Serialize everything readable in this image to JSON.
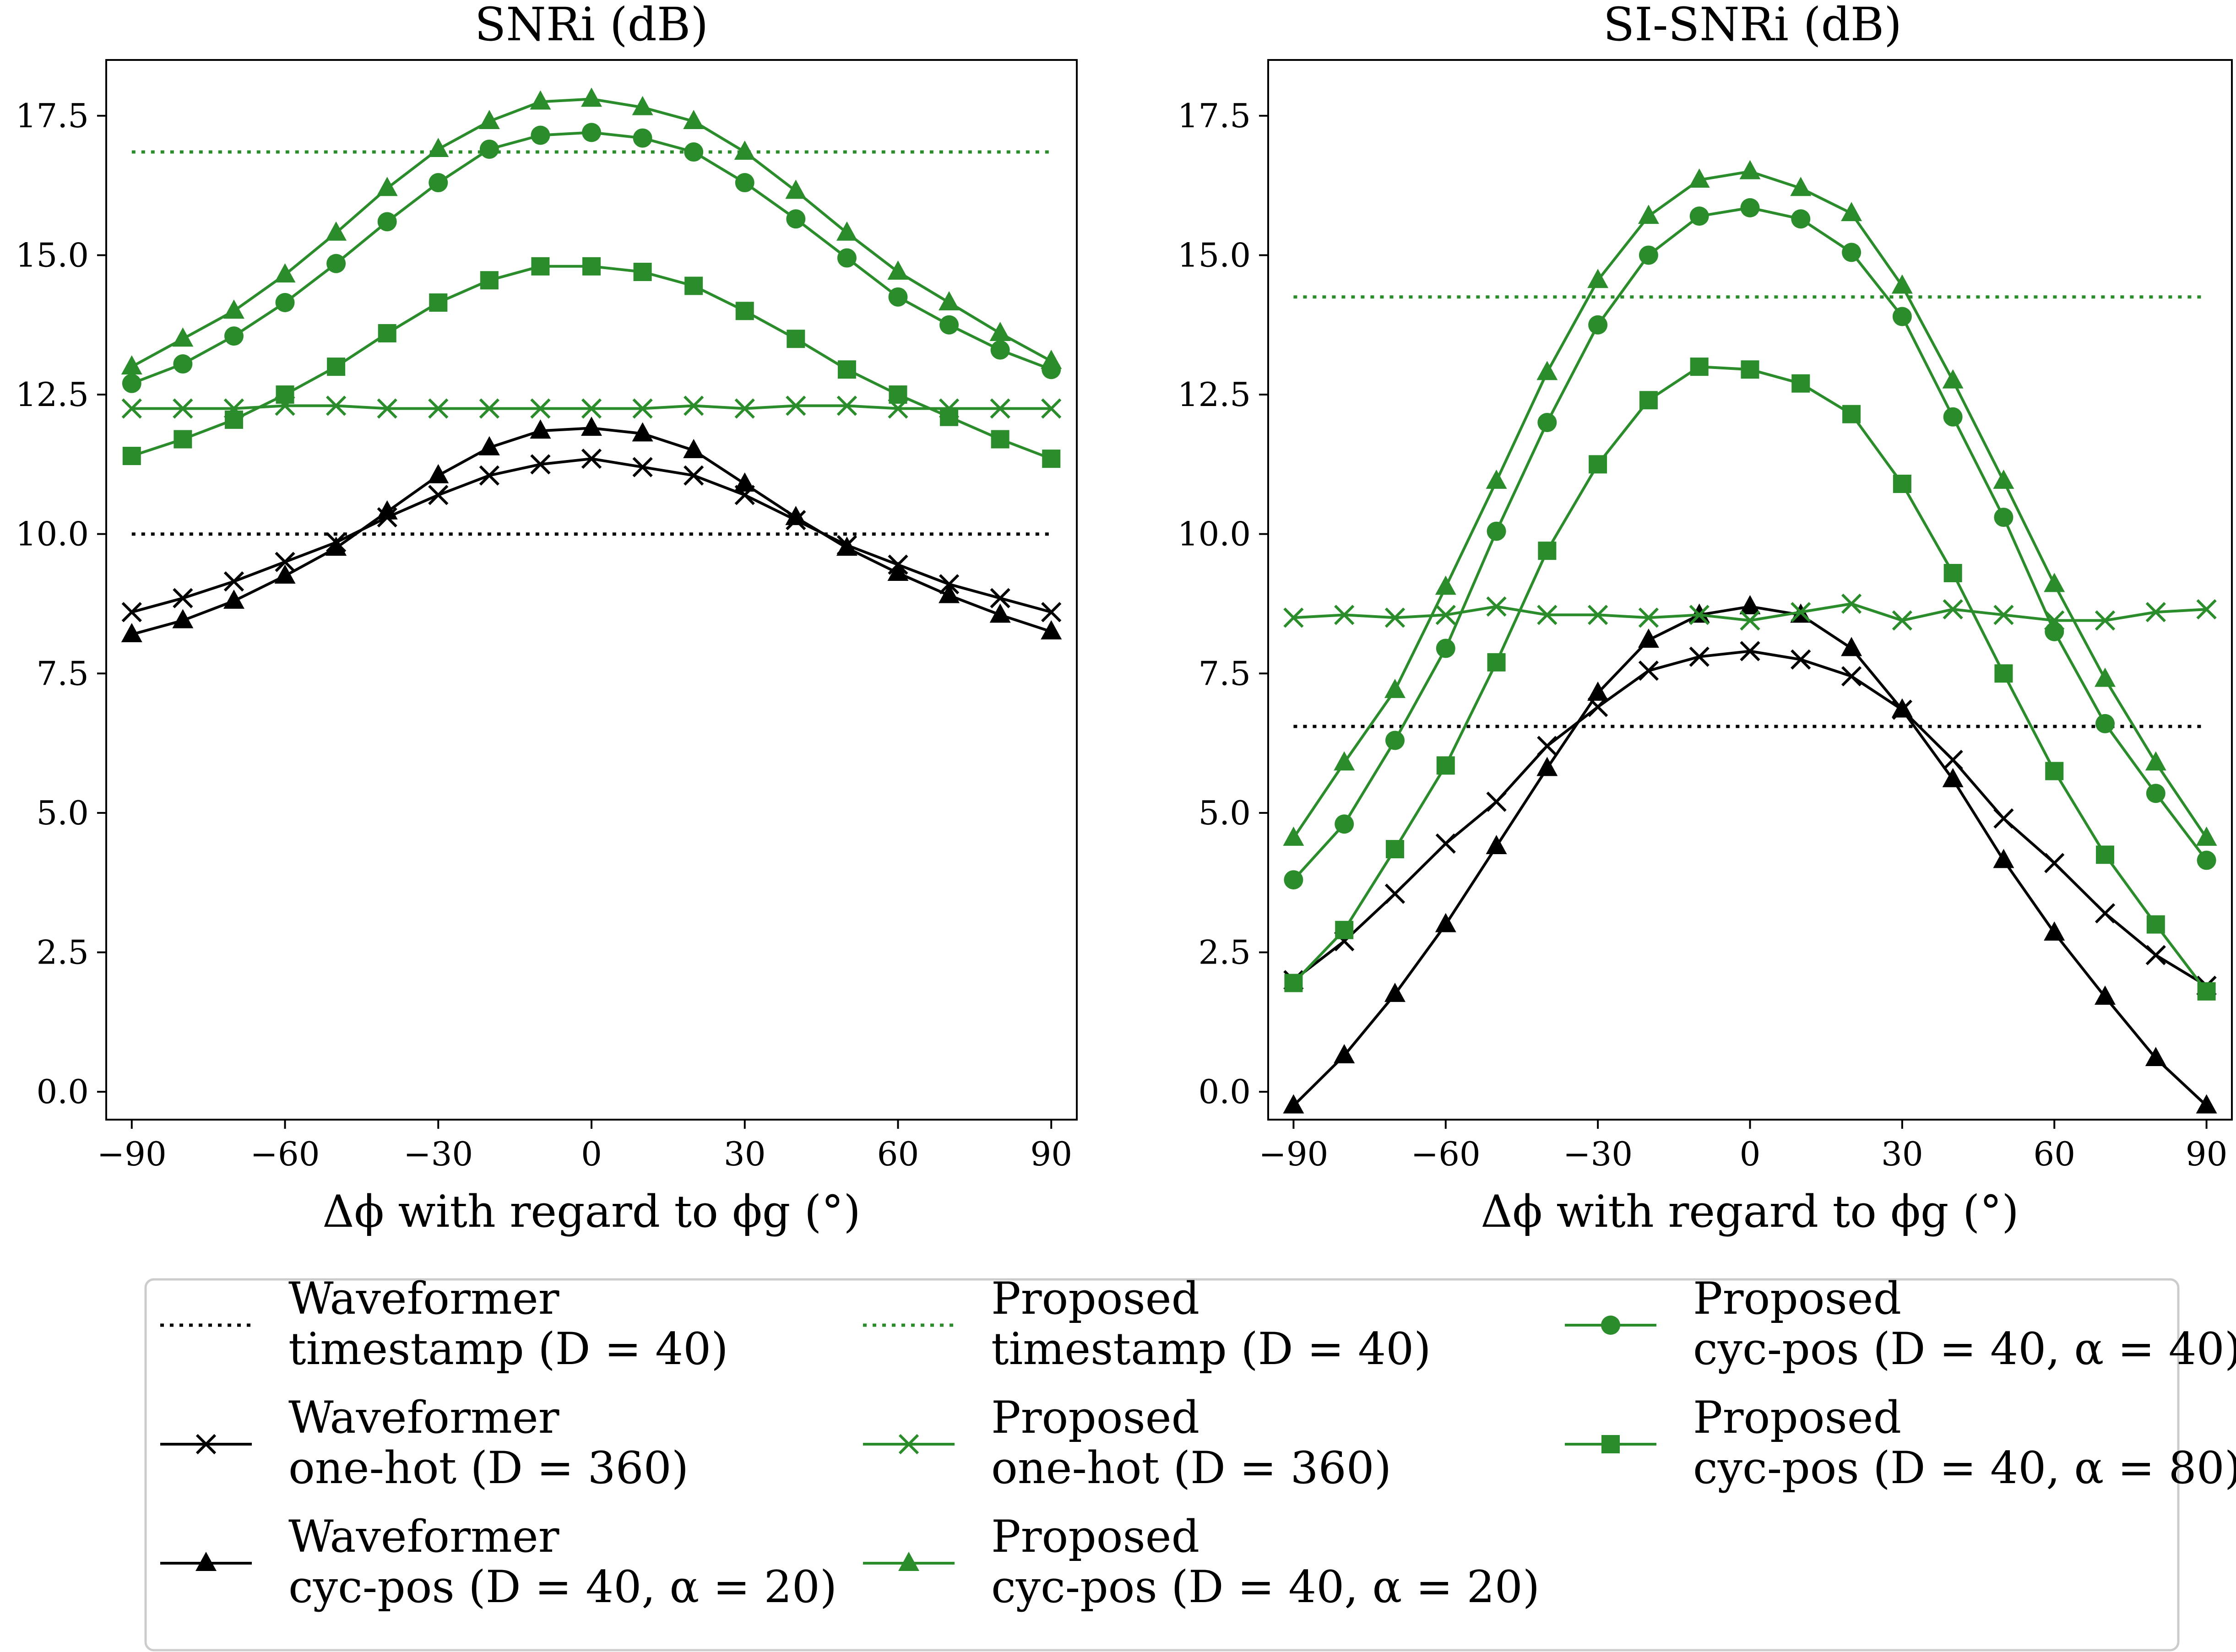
{
  "colors": {
    "black": "#000000",
    "green": "#2a8c2a",
    "legend_border": "#cccccc"
  },
  "series_styles": [
    {
      "key": "wf_ts",
      "color": "#000000",
      "dash": "dotted",
      "marker": "none"
    },
    {
      "key": "wf_oh",
      "color": "#000000",
      "dash": "solid",
      "marker": "x"
    },
    {
      "key": "wf_cp",
      "color": "#000000",
      "dash": "solid",
      "marker": "triangle"
    },
    {
      "key": "pr_ts",
      "color": "#2a8c2a",
      "dash": "dotted",
      "marker": "none"
    },
    {
      "key": "pr_oh",
      "color": "#2a8c2a",
      "dash": "solid",
      "marker": "x"
    },
    {
      "key": "pr_cp20",
      "color": "#2a8c2a",
      "dash": "solid",
      "marker": "triangle"
    },
    {
      "key": "pr_cp40",
      "color": "#2a8c2a",
      "dash": "solid",
      "marker": "circle"
    },
    {
      "key": "pr_cp80",
      "color": "#2a8c2a",
      "dash": "solid",
      "marker": "square"
    }
  ],
  "legend": {
    "entries": [
      {
        "key": "wf_ts",
        "line1": "Waveformer",
        "line2": "timestamp",
        "params": "(D = 40)"
      },
      {
        "key": "wf_oh",
        "line1": "Waveformer",
        "line2": "one-hot",
        "params": "(D = 360)"
      },
      {
        "key": "wf_cp",
        "line1": "Waveformer",
        "line2": "cyc-pos",
        "params": "(D = 40, α = 20)"
      },
      {
        "key": "pr_ts",
        "line1": "Proposed",
        "line2": "timestamp",
        "params": "(D = 40)"
      },
      {
        "key": "pr_oh",
        "line1": "Proposed",
        "line2": "one-hot",
        "params": "(D = 360)"
      },
      {
        "key": "pr_cp20",
        "line1": "Proposed",
        "line2": "cyc-pos",
        "params": "(D = 40, α = 20)"
      },
      {
        "key": "pr_cp40",
        "line1": "Proposed",
        "line2": "cyc-pos",
        "params": "(D = 40, α = 40)"
      },
      {
        "key": "pr_cp80",
        "line1": "Proposed",
        "line2": "cyc-pos",
        "params": "(D = 40, α = 80)"
      }
    ]
  },
  "chart_data": [
    {
      "type": "line",
      "title": "SNRi (dB)",
      "xlabel": "Δϕ with regard to ϕg (°)",
      "ylabel": "",
      "xlim": [
        -95,
        95
      ],
      "ylim": [
        -0.5,
        18.5
      ],
      "xticks": [
        -90,
        -60,
        -30,
        0,
        30,
        60,
        90
      ],
      "xtick_labels": [
        "−90",
        "−60",
        "−30",
        "0",
        "30",
        "60",
        "90"
      ],
      "yticks": [
        0.0,
        2.5,
        5.0,
        7.5,
        10.0,
        12.5,
        15.0,
        17.5
      ],
      "ytick_labels": [
        "0.0",
        "2.5",
        "5.0",
        "7.5",
        "10.0",
        "12.5",
        "15.0",
        "17.5"
      ],
      "x": [
        -90,
        -80,
        -70,
        -60,
        -50,
        -40,
        -30,
        -20,
        -10,
        0,
        10,
        20,
        30,
        40,
        50,
        60,
        70,
        80,
        90
      ],
      "series": [
        {
          "key": "wf_ts",
          "name": "Waveformer timestamp (D=40)",
          "values": [
            10.0,
            10.0,
            10.0,
            10.0,
            10.0,
            10.0,
            10.0,
            10.0,
            10.0,
            10.0,
            10.0,
            10.0,
            10.0,
            10.0,
            10.0,
            10.0,
            10.0,
            10.0,
            10.0
          ]
        },
        {
          "key": "wf_oh",
          "name": "Waveformer one-hot (D=360)",
          "values": [
            8.6,
            8.85,
            9.15,
            9.5,
            9.85,
            10.3,
            10.7,
            11.05,
            11.25,
            11.35,
            11.2,
            11.05,
            10.7,
            10.25,
            9.8,
            9.45,
            9.1,
            8.85,
            8.6
          ]
        },
        {
          "key": "wf_cp",
          "name": "Waveformer cyc-pos (D=40, α=20)",
          "values": [
            8.2,
            8.45,
            8.8,
            9.25,
            9.75,
            10.4,
            11.05,
            11.55,
            11.85,
            11.9,
            11.8,
            11.5,
            10.9,
            10.3,
            9.75,
            9.3,
            8.9,
            8.55,
            8.25
          ]
        },
        {
          "key": "pr_ts",
          "name": "Proposed timestamp (D=40)",
          "values": [
            16.85,
            16.85,
            16.85,
            16.85,
            16.85,
            16.85,
            16.85,
            16.85,
            16.85,
            16.85,
            16.85,
            16.85,
            16.85,
            16.85,
            16.85,
            16.85,
            16.85,
            16.85,
            16.85
          ]
        },
        {
          "key": "pr_oh",
          "name": "Proposed one-hot (D=360)",
          "values": [
            12.25,
            12.25,
            12.25,
            12.3,
            12.3,
            12.25,
            12.25,
            12.25,
            12.25,
            12.25,
            12.25,
            12.3,
            12.25,
            12.3,
            12.3,
            12.25,
            12.25,
            12.25,
            12.25
          ]
        },
        {
          "key": "pr_cp20",
          "name": "Proposed cyc-pos (D=40, α=20)",
          "values": [
            13.0,
            13.5,
            14.0,
            14.65,
            15.4,
            16.2,
            16.9,
            17.4,
            17.75,
            17.8,
            17.65,
            17.4,
            16.85,
            16.15,
            15.4,
            14.7,
            14.15,
            13.6,
            13.1
          ]
        },
        {
          "key": "pr_cp40",
          "name": "Proposed cyc-pos (D=40, α=40)",
          "values": [
            12.7,
            13.05,
            13.55,
            14.15,
            14.85,
            15.6,
            16.3,
            16.9,
            17.15,
            17.2,
            17.1,
            16.85,
            16.3,
            15.65,
            14.95,
            14.25,
            13.75,
            13.3,
            12.95
          ]
        },
        {
          "key": "pr_cp80",
          "name": "Proposed cyc-pos (D=40, α=80)",
          "values": [
            11.4,
            11.7,
            12.05,
            12.5,
            13.0,
            13.6,
            14.15,
            14.55,
            14.8,
            14.8,
            14.7,
            14.45,
            14.0,
            13.5,
            12.95,
            12.5,
            12.1,
            11.7,
            11.35
          ]
        }
      ]
    },
    {
      "type": "line",
      "title": "SI-SNRi (dB)",
      "xlabel": "Δϕ with regard to ϕg (°)",
      "ylabel": "",
      "xlim": [
        -95,
        95
      ],
      "ylim": [
        -0.5,
        18.5
      ],
      "xticks": [
        -90,
        -60,
        -30,
        0,
        30,
        60,
        90
      ],
      "xtick_labels": [
        "−90",
        "−60",
        "−30",
        "0",
        "30",
        "60",
        "90"
      ],
      "yticks": [
        0.0,
        2.5,
        5.0,
        7.5,
        10.0,
        12.5,
        15.0,
        17.5
      ],
      "ytick_labels": [
        "0.0",
        "2.5",
        "5.0",
        "7.5",
        "10.0",
        "12.5",
        "15.0",
        "17.5"
      ],
      "x": [
        -90,
        -80,
        -70,
        -60,
        -50,
        -40,
        -30,
        -20,
        -10,
        0,
        10,
        20,
        30,
        40,
        50,
        60,
        70,
        80,
        90
      ],
      "series": [
        {
          "key": "wf_ts",
          "name": "Waveformer timestamp (D=40)",
          "values": [
            6.55,
            6.55,
            6.55,
            6.55,
            6.55,
            6.55,
            6.55,
            6.55,
            6.55,
            6.55,
            6.55,
            6.55,
            6.55,
            6.55,
            6.55,
            6.55,
            6.55,
            6.55,
            6.55
          ]
        },
        {
          "key": "wf_oh",
          "name": "Waveformer one-hot (D=360)",
          "values": [
            2.0,
            2.7,
            3.55,
            4.45,
            5.2,
            6.2,
            6.9,
            7.55,
            7.8,
            7.9,
            7.75,
            7.45,
            6.85,
            5.95,
            4.9,
            4.1,
            3.2,
            2.45,
            1.9
          ]
        },
        {
          "key": "wf_cp",
          "name": "Waveformer cyc-pos (D=40, α=20)",
          "values": [
            -0.25,
            0.65,
            1.75,
            3.0,
            4.4,
            5.8,
            7.15,
            8.1,
            8.55,
            8.7,
            8.55,
            7.95,
            6.85,
            5.6,
            4.15,
            2.85,
            1.7,
            0.6,
            -0.25
          ]
        },
        {
          "key": "pr_ts",
          "name": "Proposed timestamp (D=40)",
          "values": [
            14.25,
            14.25,
            14.25,
            14.25,
            14.25,
            14.25,
            14.25,
            14.25,
            14.25,
            14.25,
            14.25,
            14.25,
            14.25,
            14.25,
            14.25,
            14.25,
            14.25,
            14.25,
            14.25
          ]
        },
        {
          "key": "pr_oh",
          "name": "Proposed one-hot (D=360)",
          "values": [
            8.5,
            8.55,
            8.5,
            8.55,
            8.7,
            8.55,
            8.55,
            8.5,
            8.55,
            8.45,
            8.6,
            8.75,
            8.45,
            8.65,
            8.55,
            8.45,
            8.45,
            8.6,
            8.65
          ]
        },
        {
          "key": "pr_cp20",
          "name": "Proposed cyc-pos (D=40, α=20)",
          "values": [
            4.55,
            5.9,
            7.2,
            9.05,
            10.95,
            12.9,
            14.55,
            15.7,
            16.35,
            16.5,
            16.2,
            15.75,
            14.45,
            12.75,
            10.95,
            9.1,
            7.4,
            5.9,
            4.55
          ]
        },
        {
          "key": "pr_cp40",
          "name": "Proposed cyc-pos (D=40, α=40)",
          "values": [
            3.8,
            4.8,
            6.3,
            7.95,
            10.05,
            12.0,
            13.75,
            15.0,
            15.7,
            15.85,
            15.65,
            15.05,
            13.9,
            12.1,
            10.3,
            8.25,
            6.6,
            5.35,
            4.15
          ]
        },
        {
          "key": "pr_cp80",
          "name": "Proposed cyc-pos (D=40, α=80)",
          "values": [
            1.95,
            2.9,
            4.35,
            5.85,
            7.7,
            9.7,
            11.25,
            12.4,
            13.0,
            12.95,
            12.7,
            12.15,
            10.9,
            9.3,
            7.5,
            5.75,
            4.25,
            3.0,
            1.8
          ]
        }
      ]
    }
  ]
}
